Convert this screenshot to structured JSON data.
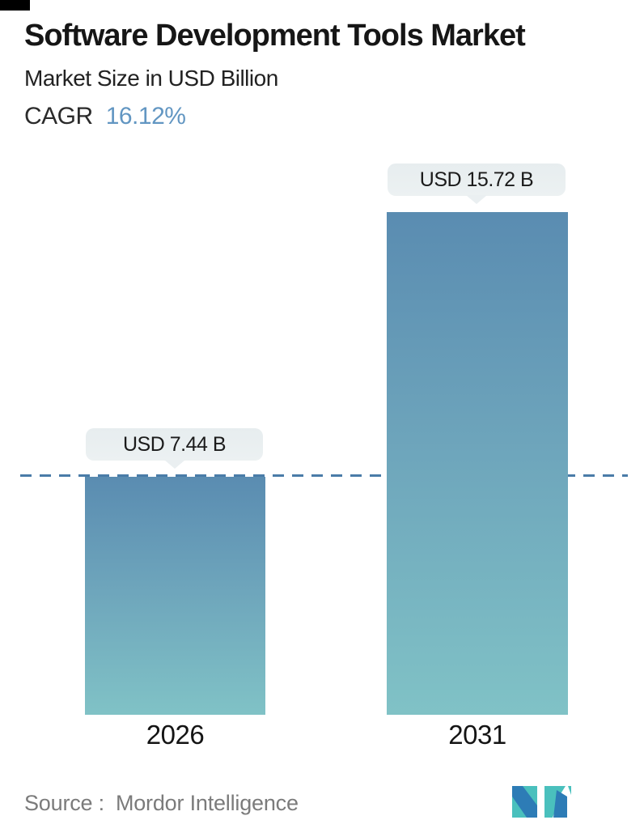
{
  "header": {
    "title": "Software Development Tools Market",
    "subtitle": "Market Size in USD Billion",
    "cagr_label": "CAGR",
    "cagr_value": "16.12%"
  },
  "chart_data": {
    "type": "bar",
    "title": "Software Development Tools Market",
    "ylabel": "Market Size in USD Billion",
    "categories": [
      "2026",
      "2031"
    ],
    "values": [
      7.44,
      15.72
    ],
    "value_labels": [
      "USD 7.44 B",
      "USD 15.72 B"
    ],
    "unit": "USD Billion",
    "cagr_percent": 16.12,
    "ylim": [
      0,
      17.5
    ],
    "grid": false,
    "legend": "none",
    "reference_line": {
      "value": 7.44,
      "style": "dashed",
      "color": "#4a7ca8"
    },
    "bar_gradient_top": "#5a8cb1",
    "bar_gradient_bottom": "#80c2c6",
    "tooltip_bg": "#e9eef1"
  },
  "footer": {
    "source_label": "Source :",
    "source_value": "Mordor Intelligence"
  },
  "colors": {
    "accent_blue": "#6296c2",
    "dash_line": "#4a7ca8",
    "text_dark": "#161616",
    "text_gray": "#7b7b7b",
    "logo_blue": "#2d7cb6",
    "logo_teal": "#4ac0bd"
  }
}
